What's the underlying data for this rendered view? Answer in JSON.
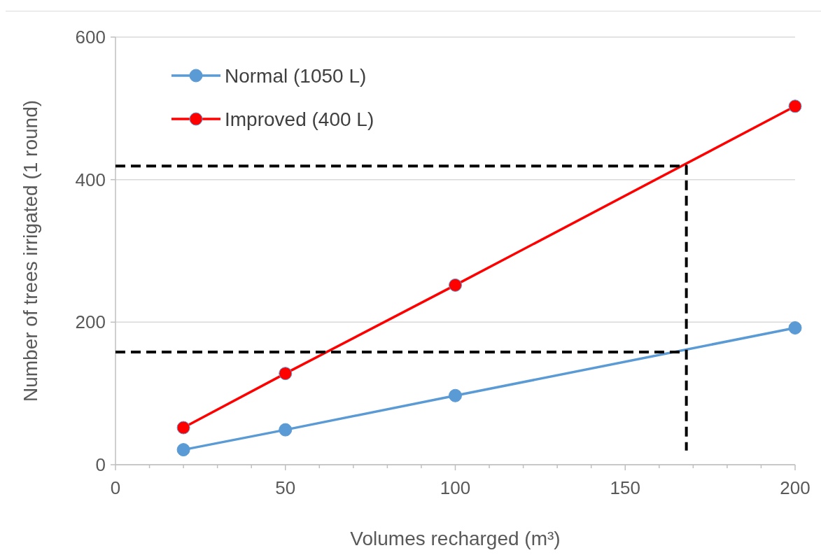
{
  "chart_data": {
    "type": "line",
    "xlabel": "Volumes recharged (m³)",
    "ylabel": "Number of  trees irrigated (1 round)",
    "xlim": [
      0,
      200
    ],
    "ylim": [
      0,
      600
    ],
    "xticks": [
      0,
      {
        "value": 10,
        "label": null
      },
      {
        "value": 20,
        "label": null
      },
      {
        "value": 30,
        "label": null
      },
      {
        "value": 40,
        "label": null
      },
      50,
      {
        "value": 60,
        "label": null
      },
      {
        "value": 70,
        "label": null
      },
      {
        "value": 80,
        "label": null
      },
      {
        "value": 90,
        "label": null
      },
      100,
      {
        "value": 110,
        "label": null
      },
      {
        "value": 120,
        "label": null
      },
      {
        "value": 130,
        "label": null
      },
      {
        "value": 140,
        "label": null
      },
      150,
      {
        "value": 160,
        "label": null
      },
      {
        "value": 170,
        "label": null
      },
      {
        "value": 180,
        "label": null
      },
      {
        "value": 190,
        "label": null
      },
      200
    ],
    "yticks": [
      0,
      200,
      400,
      600
    ],
    "grid": "y",
    "legend": "top left",
    "marker": "circle",
    "line_style": "solid",
    "series": [
      {
        "name": "Normal (1050 L)",
        "color": "#5b9bd5",
        "x": [
          20,
          50,
          100,
          200
        ],
        "values": [
          21,
          49,
          97,
          192
        ]
      },
      {
        "name": "Improved (400 L)",
        "color": "#ff0000",
        "x": [
          20,
          50,
          100,
          200
        ],
        "values": [
          52,
          128,
          252,
          503
        ]
      },
      {
        "color": "#000000",
        "marker": "none",
        "line_style": "dashed",
        "x": [
          0,
          168,
          168
        ],
        "values": [
          419,
          419,
          20
        ]
      },
      {
        "color": "#000000",
        "marker": "none",
        "line_style": "dashed",
        "x": [
          0,
          168
        ],
        "values": [
          158,
          158
        ]
      }
    ]
  }
}
